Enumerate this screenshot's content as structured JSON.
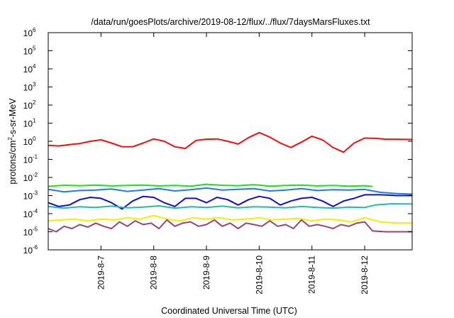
{
  "chart_data": {
    "type": "line",
    "title": "/data/run/goesPlots/archive/2019-08-12/flux/../flux/7daysMarsFluxes.txt",
    "xlabel": "Coordinated Universal Time (UTC)",
    "ylabel_parts": [
      "protons/cm",
      "2",
      "-s-sr-MeV"
    ],
    "y_scale": "log",
    "ylim_exp": [
      -6,
      6
    ],
    "y_ticks": [
      {
        "base": "10",
        "exp": "-6"
      },
      {
        "base": "10",
        "exp": "-5"
      },
      {
        "base": "10",
        "exp": "-4"
      },
      {
        "base": "10",
        "exp": "-3"
      },
      {
        "base": "10",
        "exp": "-2"
      },
      {
        "base": "10",
        "exp": "-1"
      },
      {
        "base": "10",
        "exp": "0"
      },
      {
        "base": "10",
        "exp": "1"
      },
      {
        "base": "10",
        "exp": "2"
      },
      {
        "base": "10",
        "exp": "3"
      },
      {
        "base": "10",
        "exp": "4"
      },
      {
        "base": "10",
        "exp": "5"
      },
      {
        "base": "10",
        "exp": "6"
      }
    ],
    "x_range_days": [
      0,
      6.9
    ],
    "x_ticks": [
      {
        "label": "2019-8-7",
        "day": 1
      },
      {
        "label": "2019-8-8",
        "day": 2
      },
      {
        "label": "2019-8-9",
        "day": 3
      },
      {
        "label": "2019-8-10",
        "day": 4
      },
      {
        "label": "2019-8-11",
        "day": 5
      },
      {
        "label": "2019-8-12",
        "day": 6
      }
    ],
    "grid": false,
    "series": [
      {
        "color": "#ee1111",
        "x": [
          0,
          0.2,
          0.4,
          0.6,
          0.8,
          1.0,
          1.2,
          1.4,
          1.6,
          1.8,
          2.0,
          2.2,
          2.4,
          2.6,
          2.8,
          3.0,
          3.2,
          3.4,
          3.6,
          3.8,
          4.0,
          4.2,
          4.4,
          4.6,
          4.8,
          5.0,
          5.2,
          5.4,
          5.6,
          5.8,
          6.0,
          6.2,
          6.4,
          6.6,
          6.9
        ],
        "y": [
          0.6,
          0.55,
          0.65,
          0.75,
          1.0,
          1.2,
          0.8,
          0.5,
          0.5,
          0.8,
          1.35,
          1.0,
          0.5,
          0.4,
          1.1,
          1.3,
          1.35,
          1.0,
          0.7,
          1.6,
          3.0,
          1.7,
          0.8,
          0.45,
          0.9,
          1.9,
          1.2,
          0.45,
          0.25,
          0.8,
          1.5,
          1.45,
          1.3,
          1.3,
          1.25
        ]
      },
      {
        "color": "#22dd22",
        "x": [
          0,
          0.3,
          0.6,
          0.9,
          1.2,
          1.5,
          1.8,
          2.1,
          2.4,
          2.7,
          3.0,
          3.3,
          3.6,
          3.9,
          4.2,
          4.5,
          4.8,
          5.1,
          5.4,
          5.7,
          6.0,
          6.15
        ],
        "y": [
          0.0032,
          0.0037,
          0.0035,
          0.0038,
          0.0034,
          0.0036,
          0.0038,
          0.0034,
          0.0036,
          0.0033,
          0.0042,
          0.0037,
          0.0035,
          0.004,
          0.0033,
          0.0036,
          0.0038,
          0.0034,
          0.0036,
          0.0033,
          0.0035,
          0.0032
        ]
      },
      {
        "color": "#1e7fe0",
        "x": [
          0,
          0.3,
          0.6,
          0.9,
          1.2,
          1.5,
          1.8,
          2.1,
          2.4,
          2.7,
          3.0,
          3.3,
          3.6,
          3.9,
          4.2,
          4.5,
          4.8,
          5.1,
          5.4,
          5.7,
          6.0,
          6.3,
          6.6,
          6.9
        ],
        "y": [
          0.0022,
          0.0016,
          0.0019,
          0.002,
          0.0023,
          0.0017,
          0.002,
          0.0024,
          0.0018,
          0.0021,
          0.0026,
          0.002,
          0.0022,
          0.0024,
          0.0018,
          0.002,
          0.0024,
          0.0019,
          0.0021,
          0.002,
          0.0022,
          0.0015,
          0.0013,
          0.0012
        ]
      },
      {
        "color": "#1111cc",
        "x": [
          0,
          0.2,
          0.4,
          0.6,
          0.8,
          1.0,
          1.2,
          1.4,
          1.6,
          1.8,
          2.0,
          2.2,
          2.4,
          2.6,
          2.8,
          3.0,
          3.2,
          3.4,
          3.6,
          3.8,
          4.0,
          4.2,
          4.4,
          4.6,
          4.8,
          5.0,
          5.2,
          5.4,
          5.6,
          5.8,
          6.0,
          6.3,
          6.6,
          6.9
        ],
        "y": [
          0.0004,
          0.00025,
          0.0003,
          0.0006,
          0.0008,
          0.0007,
          0.0004,
          0.00018,
          0.0005,
          0.0009,
          0.0008,
          0.0004,
          0.00025,
          0.0007,
          0.0007,
          0.0004,
          0.0008,
          0.0006,
          0.0003,
          0.0006,
          0.0009,
          0.0007,
          0.0003,
          0.0005,
          0.0007,
          0.0008,
          0.0005,
          0.00025,
          0.0005,
          0.0007,
          0.0011,
          0.0011,
          0.001,
          0.001
        ]
      },
      {
        "color": "#22bbaa",
        "x": [
          0,
          0.3,
          0.6,
          0.9,
          1.2,
          1.5,
          1.8,
          2.1,
          2.4,
          2.7,
          3.0,
          3.3,
          3.6,
          3.9,
          4.2,
          4.5,
          4.8,
          5.1,
          5.4,
          5.7,
          6.0,
          6.2,
          6.5,
          6.9
        ],
        "y": [
          0.00025,
          0.0002,
          0.00024,
          0.00022,
          0.00026,
          0.00021,
          0.00023,
          0.00027,
          0.0002,
          0.00024,
          0.00022,
          0.00026,
          0.00021,
          0.00024,
          0.00023,
          0.00021,
          0.00025,
          0.00022,
          0.0002,
          0.00023,
          0.00022,
          0.0003,
          0.00035,
          0.00034
        ]
      },
      {
        "color": "#f0f000",
        "x": [
          0,
          0.25,
          0.5,
          0.75,
          1.0,
          1.25,
          1.5,
          1.75,
          2.0,
          2.25,
          2.5,
          2.75,
          3.0,
          3.25,
          3.5,
          3.75,
          4.0,
          4.25,
          4.5,
          4.75,
          5.0,
          5.25,
          5.5,
          5.75,
          6.0,
          6.3,
          6.6,
          6.9
        ],
        "y": [
          4e-05,
          4.5e-05,
          5e-05,
          4e-05,
          5e-05,
          4.5e-05,
          6e-05,
          5e-05,
          8e-05,
          5e-05,
          4e-05,
          6e-05,
          5e-05,
          6e-05,
          4.5e-05,
          5e-05,
          6e-05,
          4.5e-05,
          5e-05,
          5.5e-05,
          4e-05,
          5e-05,
          4.5e-05,
          3.5e-05,
          6e-05,
          3.5e-05,
          3e-05,
          3e-05
        ]
      },
      {
        "color": "#994477",
        "x": [
          0,
          0.15,
          0.3,
          0.45,
          0.6,
          0.75,
          0.9,
          1.05,
          1.2,
          1.35,
          1.5,
          1.65,
          1.8,
          1.95,
          2.1,
          2.25,
          2.4,
          2.55,
          2.7,
          2.85,
          3.0,
          3.15,
          3.3,
          3.45,
          3.6,
          3.75,
          3.9,
          4.05,
          4.2,
          4.35,
          4.5,
          4.65,
          4.8,
          4.95,
          5.1,
          5.25,
          5.4,
          5.55,
          5.7,
          5.85,
          6.0,
          6.15,
          6.4,
          6.7,
          6.9
        ],
        "y": [
          1.5e-05,
          1e-05,
          2e-05,
          1.5e-05,
          2.5e-05,
          1.8e-05,
          3e-05,
          2e-05,
          1.5e-05,
          3.5e-05,
          2e-05,
          4e-05,
          2.5e-05,
          3e-05,
          1.5e-05,
          4.5e-05,
          2e-05,
          3e-05,
          3.5e-05,
          2e-05,
          2.5e-05,
          4.5e-05,
          2e-05,
          3e-05,
          1.5e-05,
          3e-05,
          2.5e-05,
          2e-05,
          4e-05,
          2e-05,
          2.5e-05,
          1.5e-05,
          4.5e-05,
          2e-05,
          2.5e-05,
          2e-05,
          1.5e-05,
          2.5e-05,
          2e-05,
          3e-05,
          3.5e-05,
          1.1e-05,
          1e-05,
          1e-05,
          1e-05
        ]
      }
    ]
  }
}
